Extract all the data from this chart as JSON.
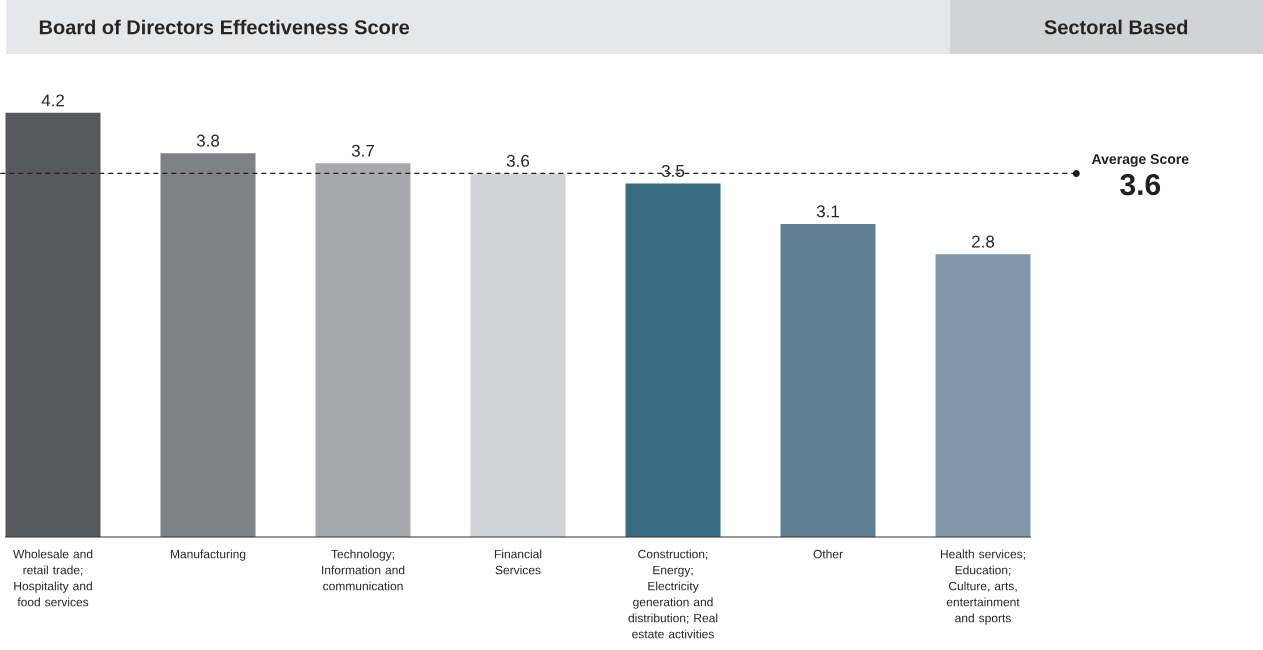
{
  "chart_data": {
    "type": "bar",
    "title": "Board of Directors Effectiveness Score",
    "subtitle": "Sectoral Based",
    "categories": [
      "Wholesale and retail trade; Hospitality and food services",
      "Manufacturing",
      "Technology; Information and communication",
      "Financial Services",
      "Construction; Energy; Electricity generation and distribution; Real estate activities",
      "Other",
      "Health services; Education; Culture, arts, entertainment and sports"
    ],
    "values": [
      4.2,
      3.8,
      3.7,
      3.6,
      3.5,
      3.1,
      2.8
    ],
    "colors": [
      "#58595b",
      "#808184",
      "#a7a9ac",
      "#d1d3d4",
      "#386c80",
      "#5e7f92",
      "#8098aa"
    ],
    "data_labels": true,
    "ref_lines": [
      {
        "axis": "y",
        "value": 3.6,
        "label": "Average Score",
        "color": "#231f20",
        "line_style": "dashed"
      }
    ],
    "annotations": [
      "3.6"
    ]
  }
}
